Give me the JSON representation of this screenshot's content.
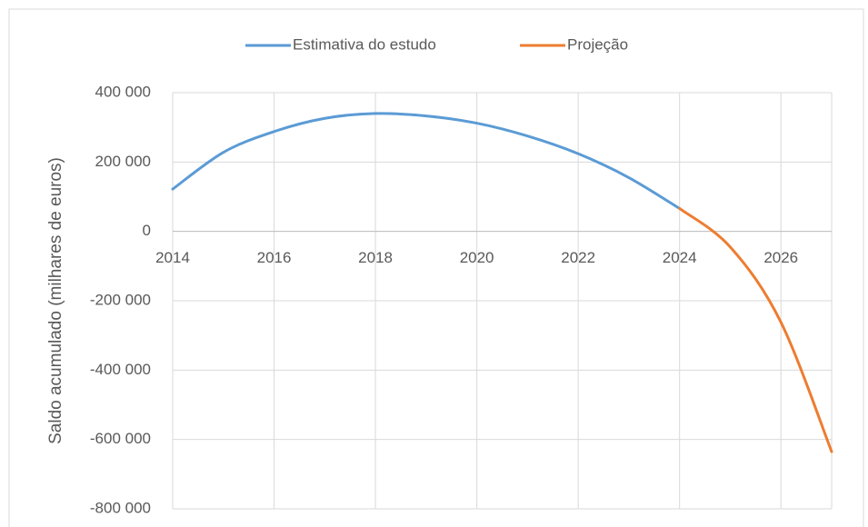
{
  "chart_data": {
    "type": "line",
    "ylabel": "Saldo acumulado (milhares de euros)",
    "series": [
      {
        "name": "Estimativa do estudo",
        "color": "#5b9bd5",
        "x": [
          2014,
          2015,
          2016,
          2017,
          2018,
          2019,
          2020,
          2021,
          2022,
          2023,
          2024
        ],
        "values": [
          122000,
          228000,
          288000,
          326000,
          340000,
          333000,
          312000,
          275000,
          224000,
          155000,
          66000
        ]
      },
      {
        "name": "Projeção",
        "color": "#ed7d31",
        "x": [
          2024,
          2025,
          2026,
          2027
        ],
        "values": [
          66000,
          -45000,
          -262000,
          -635000
        ]
      }
    ],
    "xlim": [
      2014,
      2027
    ],
    "xticks": [
      2014,
      2016,
      2018,
      2020,
      2022,
      2024,
      2026
    ],
    "ylim": [
      -800000,
      400000
    ],
    "yticks": [
      {
        "value": -800000,
        "label": "-800 000"
      },
      {
        "value": -600000,
        "label": "-600 000"
      },
      {
        "value": -400000,
        "label": "-400 000"
      },
      {
        "value": -200000,
        "label": "-200 000"
      },
      {
        "value": 0,
        "label": "0"
      },
      {
        "value": 200000,
        "label": "200 000"
      },
      {
        "value": 400000,
        "label": "400 000"
      }
    ],
    "grid": true,
    "legend": "top"
  }
}
